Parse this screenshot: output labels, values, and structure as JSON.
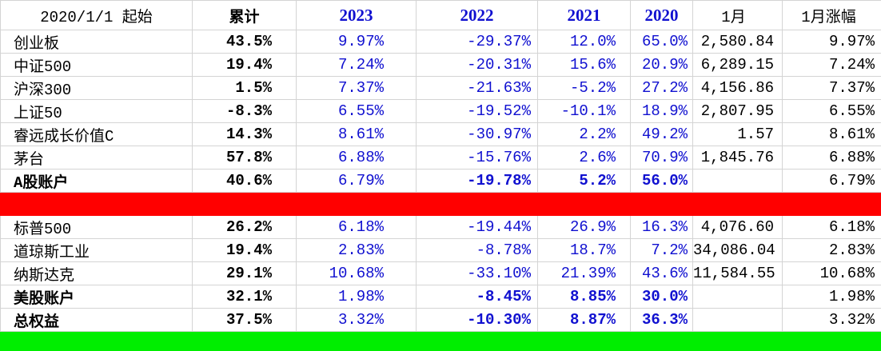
{
  "header": [
    "2020/1/1 起始",
    "累计",
    "2023",
    "2022",
    "2021",
    "2020",
    "1月",
    "1月涨幅"
  ],
  "sections": [
    {
      "rows": [
        {
          "cells": [
            "创业板",
            "43.5%",
            "9.97%",
            "-29.37%",
            "12.0%",
            "65.0%",
            "2,580.84",
            "9.97%"
          ]
        },
        {
          "cells": [
            "中证500",
            "19.4%",
            "7.24%",
            "-20.31%",
            "15.6%",
            "20.9%",
            "6,289.15",
            "7.24%"
          ]
        },
        {
          "cells": [
            "沪深300",
            "1.5%",
            "7.37%",
            "-21.63%",
            "-5.2%",
            "27.2%",
            "4,156.86",
            "7.37%"
          ]
        },
        {
          "cells": [
            "上证50",
            "-8.3%",
            "6.55%",
            "-19.52%",
            "-10.1%",
            "18.9%",
            "2,807.95",
            "6.55%"
          ]
        },
        {
          "cells": [
            "睿远成长价值C",
            "14.3%",
            "8.61%",
            "-30.97%",
            "2.2%",
            "49.2%",
            "1.57",
            "8.61%"
          ]
        },
        {
          "cells": [
            "茅台",
            "57.8%",
            "6.88%",
            "-15.76%",
            "2.6%",
            "70.9%",
            "1,845.76",
            "6.88%"
          ]
        },
        {
          "cells": [
            "A股账户",
            "40.6%",
            "6.79%",
            "-19.78%",
            "5.2%",
            "56.0%",
            null,
            "6.79%"
          ],
          "bold": true
        }
      ]
    },
    {
      "rows": [
        {
          "cells": [
            "标普500",
            "26.2%",
            "6.18%",
            "-19.44%",
            "26.9%",
            "16.3%",
            "4,076.60",
            "6.18%"
          ]
        },
        {
          "cells": [
            "道琼斯工业",
            "19.4%",
            "2.83%",
            "-8.78%",
            "18.7%",
            "7.2%",
            "34,086.04",
            "2.83%"
          ]
        },
        {
          "cells": [
            "纳斯达克",
            "29.1%",
            "10.68%",
            "-33.10%",
            "21.39%",
            "43.6%",
            "11,584.55",
            "10.68%"
          ]
        },
        {
          "cells": [
            "美股账户",
            "32.1%",
            "1.98%",
            "-8.45%",
            "8.85%",
            "30.0%",
            null,
            "1.98%"
          ],
          "bold": true
        },
        {
          "cells": [
            "总权益",
            "37.5%",
            "3.32%",
            "-10.30%",
            "8.87%",
            "36.3%",
            null,
            "3.32%"
          ],
          "bold": true
        }
      ]
    }
  ]
}
